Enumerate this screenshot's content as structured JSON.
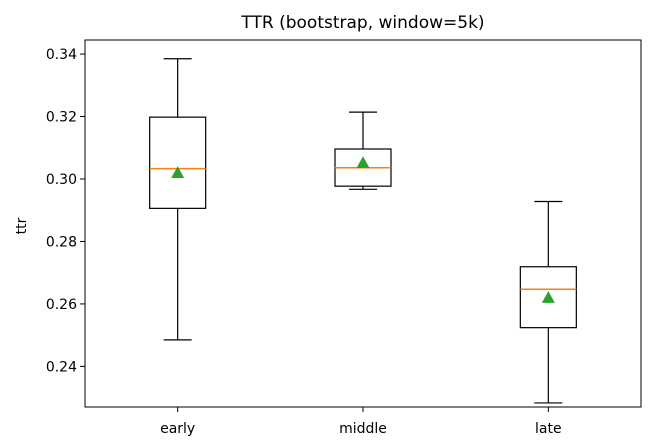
{
  "chart_data": {
    "type": "box",
    "title": "TTR (bootstrap, window=5k)",
    "xlabel": "",
    "ylabel": "ttr",
    "categories": [
      "early",
      "middle",
      "late"
    ],
    "ylim": [
      0.227,
      0.3445
    ],
    "yticks": [
      0.24,
      0.26,
      0.28,
      0.3,
      0.32,
      0.34
    ],
    "ytick_labels": [
      "0.24",
      "0.26",
      "0.28",
      "0.30",
      "0.32",
      "0.34"
    ],
    "boxes": [
      {
        "label": "early",
        "whislo": 0.2485,
        "q1": 0.2906,
        "median": 0.3033,
        "q3": 0.3198,
        "whishi": 0.3385,
        "mean": 0.302
      },
      {
        "label": "middle",
        "whislo": 0.2967,
        "q1": 0.2977,
        "median": 0.3036,
        "q3": 0.3096,
        "whishi": 0.3214,
        "mean": 0.3052
      },
      {
        "label": "late",
        "whislo": 0.2283,
        "q1": 0.2524,
        "median": 0.2647,
        "q3": 0.2719,
        "whishi": 0.2928,
        "mean": 0.262
      }
    ],
    "grid": false,
    "colors": {
      "box": "#000000",
      "median": "#ff7f0e",
      "mean_marker": "#2ca02c"
    }
  }
}
